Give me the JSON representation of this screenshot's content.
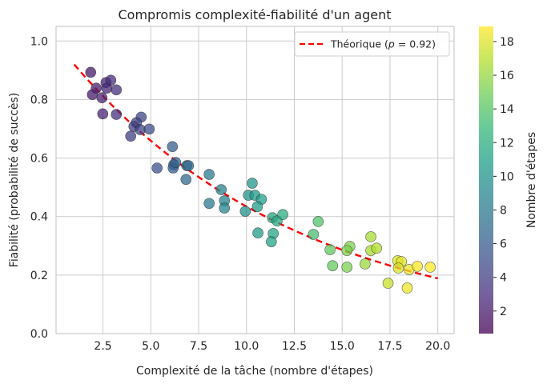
{
  "chart_data": {
    "type": "scatter",
    "title": "Compromis complexité-fiabilité d'un agent",
    "xlabel": "Complexité de la tâche (nombre d'étapes)",
    "ylabel": "Fiabilité (probabilité de succès)",
    "xlim": [
      0.05,
      20.85
    ],
    "ylim": [
      0,
      1.05
    ],
    "xticks": [
      2.5,
      5.0,
      7.5,
      10.0,
      12.5,
      15.0,
      17.5,
      20.0
    ],
    "xtick_labels": [
      "2.5",
      "5.0",
      "7.5",
      "10.0",
      "12.5",
      "15.0",
      "17.5",
      "20.0"
    ],
    "yticks": [
      0,
      0.2,
      0.4,
      0.6,
      0.8,
      1.0
    ],
    "ytick_labels": [
      "0.0",
      "0.2",
      "0.4",
      "0.6",
      "0.8",
      "1.0"
    ],
    "grid": true,
    "colormap": "viridis",
    "colorbar": {
      "label": "Nombre d'étapes",
      "range": [
        0.66,
        18.9
      ],
      "ticks": [
        2,
        4,
        6,
        8,
        10,
        12,
        14,
        16,
        18
      ],
      "tick_labels": [
        "2",
        "4",
        "6",
        "8",
        "10",
        "12",
        "14",
        "16",
        "18"
      ]
    },
    "points": [
      [
        1.86,
        0.893
      ],
      [
        1.95,
        0.817
      ],
      [
        2.15,
        0.839
      ],
      [
        2.66,
        0.858
      ],
      [
        2.7,
        0.839
      ],
      [
        2.91,
        0.866
      ],
      [
        2.45,
        0.806
      ],
      [
        3.2,
        0.833
      ],
      [
        2.49,
        0.751
      ],
      [
        3.2,
        0.749
      ],
      [
        4.5,
        0.74
      ],
      [
        4.25,
        0.721
      ],
      [
        4.12,
        0.708
      ],
      [
        4.45,
        0.697
      ],
      [
        4.92,
        0.699
      ],
      [
        3.95,
        0.675
      ],
      [
        5.33,
        0.566
      ],
      [
        6.13,
        0.639
      ],
      [
        6.2,
        0.577
      ],
      [
        6.17,
        0.566
      ],
      [
        6.3,
        0.585
      ],
      [
        6.88,
        0.574
      ],
      [
        6.97,
        0.574
      ],
      [
        6.84,
        0.527
      ],
      [
        8.05,
        0.544
      ],
      [
        8.05,
        0.445
      ],
      [
        8.68,
        0.492
      ],
      [
        8.85,
        0.454
      ],
      [
        8.85,
        0.429
      ],
      [
        9.94,
        0.418
      ],
      [
        10.3,
        0.514
      ],
      [
        10.1,
        0.473
      ],
      [
        10.44,
        0.473
      ],
      [
        10.78,
        0.459
      ],
      [
        10.57,
        0.434
      ],
      [
        10.6,
        0.344
      ],
      [
        11.36,
        0.396
      ],
      [
        11.6,
        0.385
      ],
      [
        11.9,
        0.407
      ],
      [
        11.4,
        0.342
      ],
      [
        11.3,
        0.314
      ],
      [
        13.75,
        0.383
      ],
      [
        13.5,
        0.339
      ],
      [
        14.37,
        0.287
      ],
      [
        14.5,
        0.232
      ],
      [
        15.4,
        0.298
      ],
      [
        15.25,
        0.284
      ],
      [
        15.25,
        0.227
      ],
      [
        16.5,
        0.331
      ],
      [
        16.5,
        0.284
      ],
      [
        16.8,
        0.292
      ],
      [
        16.2,
        0.238
      ],
      [
        17.9,
        0.249
      ],
      [
        18.1,
        0.246
      ],
      [
        17.94,
        0.224
      ],
      [
        18.5,
        0.219
      ],
      [
        18.93,
        0.23
      ],
      [
        19.6,
        0.227
      ],
      [
        17.4,
        0.172
      ],
      [
        18.4,
        0.156
      ]
    ],
    "theory": {
      "name_prefix": "Théorique (",
      "name_var": "p",
      "name_suffix": " = 0.92)",
      "p": 0.92,
      "x_range": [
        1,
        20
      ],
      "color": "#ff0000",
      "style": "dashed"
    },
    "legend_placement": "top-right"
  }
}
